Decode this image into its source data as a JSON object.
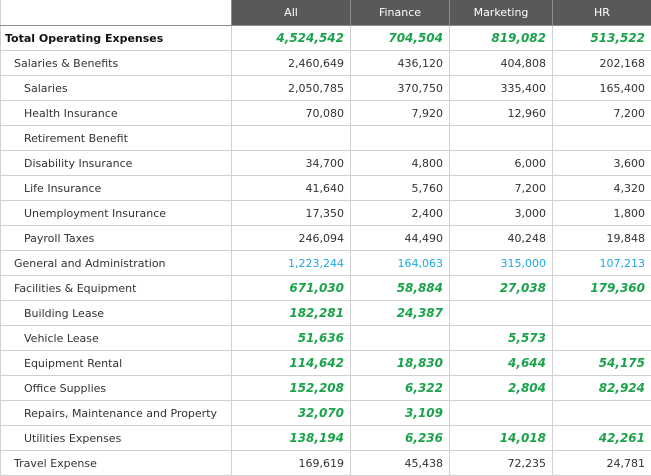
{
  "columns": [
    "All",
    "Finance",
    "Marketing",
    "HR"
  ],
  "rows": [
    {
      "label": "Total Operating Expenses",
      "level": 0,
      "style": "bold-green",
      "values": [
        "4,524,542",
        "704,504",
        "819,082",
        "513,522"
      ]
    },
    {
      "label": "Salaries & Benefits",
      "level": 1,
      "style": "norm",
      "values": [
        "2,460,649",
        "436,120",
        "404,808",
        "202,168"
      ]
    },
    {
      "label": "Salaries",
      "level": 2,
      "style": "norm",
      "values": [
        "2,050,785",
        "370,750",
        "335,400",
        "165,400"
      ]
    },
    {
      "label": "Health Insurance",
      "level": 2,
      "style": "norm",
      "values": [
        "70,080",
        "7,920",
        "12,960",
        "7,200"
      ]
    },
    {
      "label": "Retirement Benefit",
      "level": 2,
      "style": "norm",
      "values": [
        "",
        "",
        "",
        ""
      ]
    },
    {
      "label": "Disability  Insurance",
      "level": 2,
      "style": "norm",
      "values": [
        "34,700",
        "4,800",
        "6,000",
        "3,600"
      ]
    },
    {
      "label": "Life Insurance",
      "level": 2,
      "style": "norm",
      "values": [
        "41,640",
        "5,760",
        "7,200",
        "4,320"
      ]
    },
    {
      "label": "Unemployment Insurance",
      "level": 2,
      "style": "norm",
      "values": [
        "17,350",
        "2,400",
        "3,000",
        "1,800"
      ]
    },
    {
      "label": "Payroll Taxes",
      "level": 2,
      "style": "norm",
      "values": [
        "246,094",
        "44,490",
        "40,248",
        "19,848"
      ]
    },
    {
      "label": "General and Administration",
      "level": 1,
      "style": "blue",
      "values": [
        "1,223,244",
        "164,063",
        "315,000",
        "107,213"
      ]
    },
    {
      "label": "Facilities & Equipment",
      "level": 1,
      "style": "bold-green",
      "values": [
        "671,030",
        "58,884",
        "27,038",
        "179,360"
      ]
    },
    {
      "label": "Building Lease",
      "level": 2,
      "style": "bold-green",
      "values": [
        "182,281",
        "24,387",
        "",
        ""
      ]
    },
    {
      "label": "Vehicle Lease",
      "level": 2,
      "style": "bold-green",
      "values": [
        "51,636",
        "",
        "5,573",
        ""
      ]
    },
    {
      "label": "Equipment Rental",
      "level": 2,
      "style": "bold-green",
      "values": [
        "114,642",
        "18,830",
        "4,644",
        "54,175"
      ]
    },
    {
      "label": "Office Supplies",
      "level": 2,
      "style": "bold-green",
      "values": [
        "152,208",
        "6,322",
        "2,804",
        "82,924"
      ]
    },
    {
      "label": "Repairs, Maintenance and Property",
      "level": 2,
      "style": "bold-green",
      "values": [
        "32,070",
        "3,109",
        "",
        ""
      ]
    },
    {
      "label": "Utilities Expenses",
      "level": 2,
      "style": "bold-green",
      "values": [
        "138,194",
        "6,236",
        "14,018",
        "42,261"
      ]
    },
    {
      "label": "Travel Expense",
      "level": 1,
      "style": "norm",
      "values": [
        "169,619",
        "45,438",
        "72,235",
        "24,781"
      ]
    }
  ],
  "colors": {
    "header_bg": "#595959",
    "green": "#1aa34a",
    "blue": "#1ea7e4"
  }
}
